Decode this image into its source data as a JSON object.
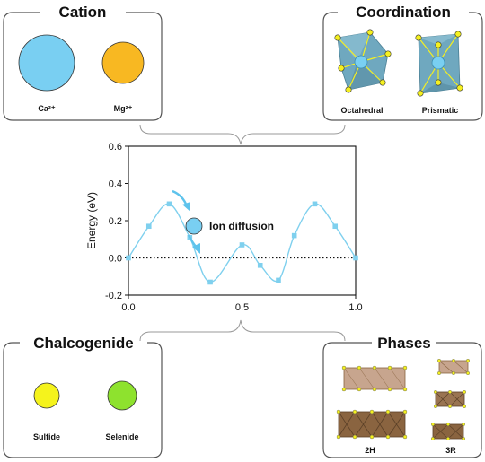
{
  "panels": {
    "cation": {
      "title": "Cation",
      "items": [
        {
          "label": "Ca²⁺",
          "color": "#79CFF2"
        },
        {
          "label": "Mg²⁺",
          "color": "#F8B822"
        }
      ]
    },
    "coordination": {
      "title": "Coordination",
      "items": [
        {
          "label": "Octahedral"
        },
        {
          "label": "Prismatic"
        }
      ]
    },
    "chalcogenide": {
      "title": "Chalcogenide",
      "items": [
        {
          "label": "Sulfide",
          "color": "#F5F31C"
        },
        {
          "label": "Selenide",
          "color": "#8EE22E"
        }
      ]
    },
    "phases": {
      "title": "Phases",
      "items": [
        {
          "label": "2H"
        },
        {
          "label": "3R"
        }
      ]
    }
  },
  "colors": {
    "panel_border": "#555555",
    "curve": "#7FD0EE",
    "marker": "#7FD0EE",
    "arrow": "#5EC3EC",
    "polyhedron": "#6FA8BF",
    "vertex": "#F5F020",
    "phase_light": "#C7A58E",
    "phase_dark": "#8A6440"
  },
  "annotation": {
    "label": "Ion diffusion",
    "icon": "ion-circle-icon"
  },
  "chart_data": {
    "type": "line",
    "xlabel": "",
    "ylabel": "Energy (eV)",
    "xlim": [
      0.0,
      1.0
    ],
    "ylim": [
      -0.2,
      0.6
    ],
    "x_ticks": [
      "0.0",
      "0.5",
      "1.0"
    ],
    "y_ticks": [
      "-0.2",
      "0.0",
      "0.2",
      "0.4",
      "0.6"
    ],
    "reference_line_y": 0.0,
    "series": [
      {
        "x": [
          0.0,
          0.09,
          0.18,
          0.27,
          0.36,
          0.5,
          0.58,
          0.66,
          0.73,
          0.82,
          0.91,
          1.0
        ],
        "y": [
          0.0,
          0.17,
          0.29,
          0.11,
          -0.13,
          0.07,
          -0.04,
          -0.12,
          0.12,
          0.29,
          0.17,
          0.0
        ]
      }
    ]
  }
}
